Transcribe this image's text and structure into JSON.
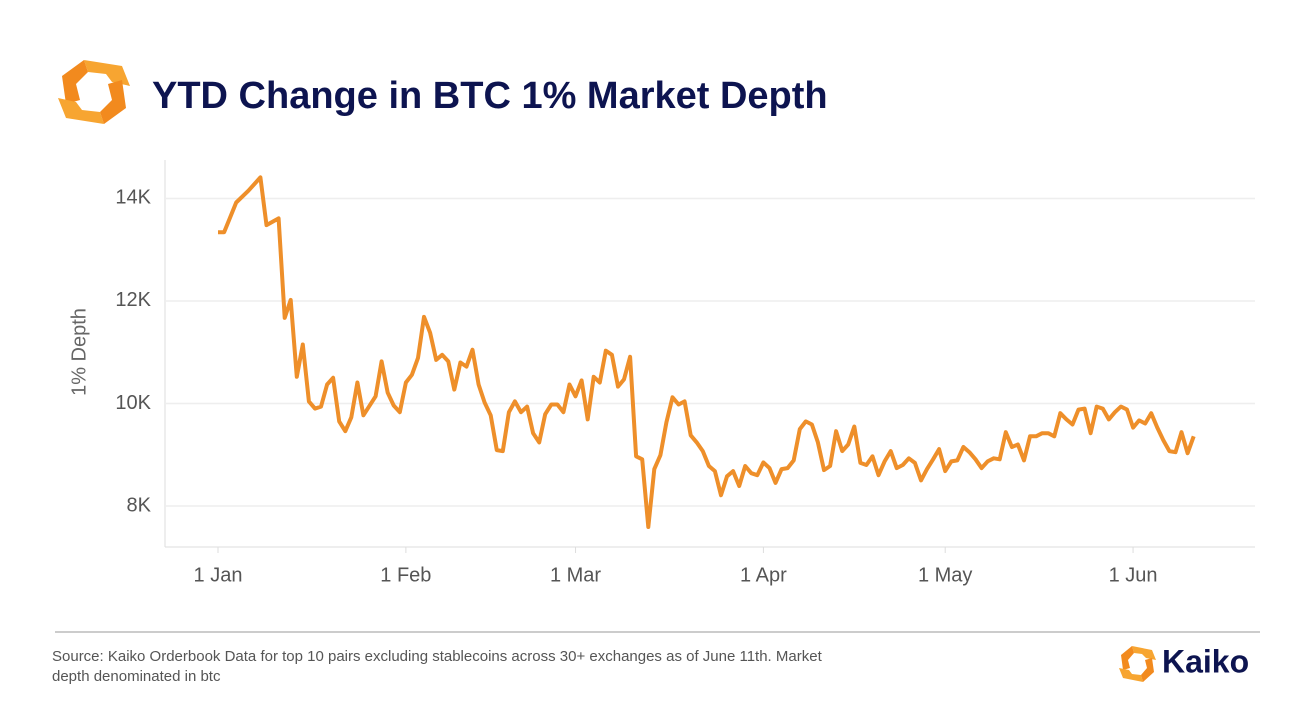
{
  "title": "YTD Change in BTC 1% Market Depth",
  "source": "Source: Kaiko Orderbook Data for top 10 pairs excluding stablecoins across 30+ exchanges as of June 11th. Market depth denominated in btc",
  "brand": "Kaiko",
  "chart_data": {
    "type": "line",
    "y_label": "1% Depth",
    "ylim": [
      7200,
      14750
    ],
    "yticks": [
      {
        "value": 8000,
        "label": "8K"
      },
      {
        "value": 10000,
        "label": "10K"
      },
      {
        "value": 12000,
        "label": "12K"
      },
      {
        "value": 14000,
        "label": "14K"
      }
    ],
    "xticks": [
      "1 Jan",
      "1 Feb",
      "1 Mar",
      "1 Apr",
      "1 May",
      "1 Jun"
    ],
    "grid": true,
    "x": [
      "1 Jan",
      "2 Jan",
      "4 Jan",
      "6 Jan",
      "8 Jan",
      "9 Jan",
      "11 Jan",
      "12 Jan",
      "13 Jan",
      "14 Jan",
      "15 Jan",
      "16 Jan",
      "17 Jan",
      "18 Jan",
      "19 Jan",
      "20 Jan",
      "21 Jan",
      "22 Jan",
      "23 Jan",
      "24 Jan",
      "25 Jan",
      "27 Jan",
      "28 Jan",
      "29 Jan",
      "30 Jan",
      "31 Jan",
      "1 Feb",
      "2 Feb",
      "3 Feb",
      "4 Feb",
      "5 Feb",
      "6 Feb",
      "7 Feb",
      "8 Feb",
      "9 Feb",
      "10 Feb",
      "11 Feb",
      "12 Feb",
      "13 Feb",
      "14 Feb",
      "15 Feb",
      "16 Feb",
      "17 Feb",
      "18 Feb",
      "19 Feb",
      "20 Feb",
      "21 Feb",
      "22 Feb",
      "23 Feb",
      "24 Feb",
      "25 Feb",
      "26 Feb",
      "27 Feb",
      "28 Feb",
      "1 Mar",
      "2 Mar",
      "3 Mar",
      "4 Mar",
      "5 Mar",
      "6 Mar",
      "7 Mar",
      "8 Mar",
      "9 Mar",
      "10 Mar",
      "11 Mar",
      "12 Mar",
      "13 Mar",
      "14 Mar",
      "15 Mar",
      "16 Mar",
      "17 Mar",
      "18 Mar",
      "19 Mar",
      "20 Mar",
      "21 Mar",
      "22 Mar",
      "23 Mar",
      "24 Mar",
      "25 Mar",
      "26 Mar",
      "27 Mar",
      "28 Mar",
      "29 Mar",
      "30 Mar",
      "31 Mar",
      "1 Apr",
      "2 Apr",
      "3 Apr",
      "4 Apr",
      "5 Apr",
      "6 Apr",
      "7 Apr",
      "8 Apr",
      "9 Apr",
      "10 Apr",
      "11 Apr",
      "12 Apr",
      "13 Apr",
      "14 Apr",
      "15 Apr",
      "16 Apr",
      "17 Apr",
      "18 Apr",
      "19 Apr",
      "20 Apr",
      "21 Apr",
      "22 Apr",
      "23 Apr",
      "24 Apr",
      "25 Apr",
      "26 Apr",
      "27 Apr",
      "28 Apr",
      "29 Apr",
      "30 Apr",
      "1 May",
      "2 May",
      "3 May",
      "4 May",
      "5 May",
      "6 May",
      "7 May",
      "8 May",
      "9 May",
      "10 May",
      "11 May",
      "12 May",
      "13 May",
      "14 May",
      "15 May",
      "16 May",
      "17 May",
      "18 May",
      "19 May",
      "20 May",
      "21 May",
      "22 May",
      "23 May",
      "24 May",
      "25 May",
      "26 May",
      "27 May",
      "28 May",
      "29 May",
      "30 May",
      "31 May",
      "1 Jun",
      "2 Jun",
      "3 Jun",
      "4 Jun",
      "5 Jun",
      "6 Jun",
      "7 Jun",
      "8 Jun",
      "9 Jun",
      "10 Jun",
      "11 Jun"
    ],
    "series": [
      {
        "name": "1% Depth",
        "color": "#ee8f2a",
        "values": [
          13340,
          13340,
          13920,
          14150,
          14410,
          13480,
          13610,
          11670,
          12020,
          10520,
          11150,
          10040,
          9900,
          9940,
          10370,
          10500,
          9650,
          9460,
          9730,
          10410,
          9770,
          10140,
          10820,
          10210,
          9960,
          9830,
          10410,
          10560,
          10890,
          11690,
          11380,
          10850,
          10950,
          10820,
          10270,
          10800,
          10720,
          11050,
          10370,
          10020,
          9770,
          9090,
          9070,
          9830,
          10040,
          9830,
          9940,
          9420,
          9240,
          9790,
          9980,
          9980,
          9830,
          10370,
          10140,
          10450,
          9690,
          10520,
          10410,
          11030,
          10950,
          10330,
          10470,
          10910,
          8970,
          8910,
          7590,
          8720,
          8990,
          9630,
          10120,
          9980,
          10040,
          9380,
          9240,
          9070,
          8780,
          8680,
          8210,
          8580,
          8680,
          8390,
          8780,
          8640,
          8600,
          8850,
          8740,
          8450,
          8720,
          8740,
          8890,
          9500,
          9650,
          9590,
          9240,
          8700,
          8780,
          9460,
          9070,
          9200,
          9550,
          8840,
          8800,
          8970,
          8600,
          8870,
          9070,
          8740,
          8800,
          8930,
          8840,
          8500,
          8720,
          8910,
          9110,
          8680,
          8870,
          8890,
          9150,
          9050,
          8910,
          8740,
          8870,
          8930,
          8910,
          9440,
          9150,
          9200,
          8890,
          9360,
          9360,
          9420,
          9420,
          9360,
          9810,
          9690,
          9590,
          9880,
          9900,
          9420,
          9940,
          9900,
          9690,
          9830,
          9940,
          9880,
          9530,
          9670,
          9610,
          9810,
          9530,
          9280,
          9070,
          9050,
          9440,
          9030,
          9360
        ]
      }
    ]
  }
}
